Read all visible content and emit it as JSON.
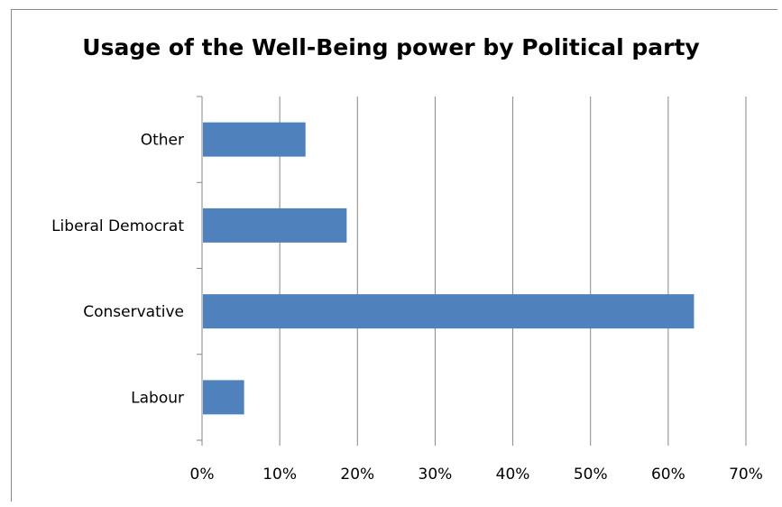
{
  "chart_data": {
    "type": "bar",
    "orientation": "horizontal",
    "title": "Usage of the Well-Being power by Political party",
    "xlabel": "",
    "ylabel": "",
    "categories": [
      "Labour",
      "Conservative",
      "Liberal Democrat",
      "Other"
    ],
    "values": [
      5.3,
      63.2,
      18.5,
      13.2
    ],
    "value_unit": "%",
    "xlim": [
      0,
      70
    ],
    "x_ticks": [
      "0%",
      "10%",
      "20%",
      "30%",
      "40%",
      "50%",
      "60%",
      "70%"
    ],
    "grid": "vertical",
    "legend": "none",
    "bar_color": "#4f81bd"
  }
}
